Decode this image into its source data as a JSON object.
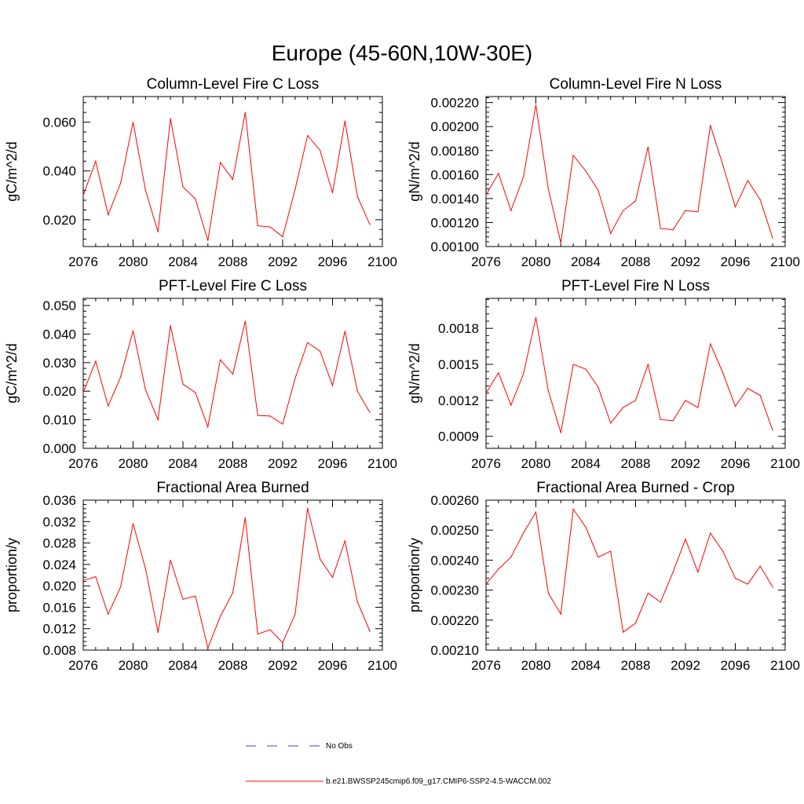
{
  "figure_title": "Europe (45-60N,10W-30E)",
  "legend": {
    "obs_label": "No Obs",
    "obs_color": "#4040c0",
    "model_label": "b.e21.BWSSP245cmip6.f09_g17.CMIP6-SSP2-4.5-WACCM.002",
    "model_color": "#ff0000"
  },
  "chart_data": [
    {
      "type": "line",
      "title": "Column-Level Fire C Loss",
      "xlabel": "",
      "ylabel": "gC/m^2/d",
      "xlim": [
        2076,
        2100
      ],
      "xticks": [
        2076,
        2080,
        2084,
        2088,
        2092,
        2096,
        2100
      ],
      "ylim": [
        0.009,
        0.0705
      ],
      "yticks": [
        0.02,
        0.04,
        0.06
      ],
      "ytick_labels": [
        "0.020",
        "0.040",
        "0.060"
      ],
      "grid": false,
      "series": [
        {
          "name": "b.e21.BWSSP245cmip6.f09_g17.CMIP6-SSP2-4.5-WACCM.002",
          "color": "#ff0000",
          "x": [
            2076,
            2077,
            2078,
            2079,
            2080,
            2081,
            2082,
            2083,
            2084,
            2085,
            2086,
            2087,
            2088,
            2089,
            2090,
            2091,
            2092,
            2093,
            2094,
            2095,
            2096,
            2097,
            2098,
            2099
          ],
          "values": [
            0.03,
            0.044,
            0.022,
            0.035,
            0.06,
            0.032,
            0.015,
            0.0615,
            0.0335,
            0.0285,
            0.0115,
            0.0435,
            0.0365,
            0.064,
            0.0175,
            0.017,
            0.013,
            0.0325,
            0.0545,
            0.0485,
            0.031,
            0.0605,
            0.0295,
            0.018
          ]
        }
      ]
    },
    {
      "type": "line",
      "title": "Column-Level Fire N Loss",
      "xlabel": "",
      "ylabel": "gN/m^2/d",
      "xlim": [
        2076,
        2100
      ],
      "xticks": [
        2076,
        2080,
        2084,
        2088,
        2092,
        2096,
        2100
      ],
      "ylim": [
        0.001,
        0.00225
      ],
      "yticks": [
        0.001,
        0.0012,
        0.0014,
        0.0016,
        0.0018,
        0.002,
        0.0022
      ],
      "ytick_labels": [
        "0.00100",
        "0.00120",
        "0.00140",
        "0.00160",
        "0.00180",
        "0.00200",
        "0.00220"
      ],
      "grid": false,
      "series": [
        {
          "name": "b.e21.BWSSP245cmip6.f09_g17.CMIP6-SSP2-4.5-WACCM.002",
          "color": "#ff0000",
          "x": [
            2076,
            2077,
            2078,
            2079,
            2080,
            2081,
            2082,
            2083,
            2084,
            2085,
            2086,
            2087,
            2088,
            2089,
            2090,
            2091,
            2092,
            2093,
            2094,
            2095,
            2096,
            2097,
            2098,
            2099
          ],
          "values": [
            0.00143,
            0.00161,
            0.0013,
            0.00158,
            0.00218,
            0.00148,
            0.00103,
            0.00176,
            0.00163,
            0.00147,
            0.00111,
            0.0013,
            0.00138,
            0.00183,
            0.00115,
            0.00114,
            0.0013,
            0.00129,
            0.00201,
            0.00168,
            0.00133,
            0.00155,
            0.00139,
            0.00107
          ]
        }
      ]
    },
    {
      "type": "line",
      "title": "PFT-Level Fire C Loss",
      "xlabel": "",
      "ylabel": "gC/m^2/d",
      "xlim": [
        2076,
        2100
      ],
      "xticks": [
        2076,
        2080,
        2084,
        2088,
        2092,
        2096,
        2100
      ],
      "ylim": [
        0.0,
        0.0525
      ],
      "yticks": [
        0.0,
        0.01,
        0.02,
        0.03,
        0.04,
        0.05
      ],
      "ytick_labels": [
        "0.000",
        "0.010",
        "0.020",
        "0.030",
        "0.040",
        "0.050"
      ],
      "grid": false,
      "series": [
        {
          "name": "b.e21.BWSSP245cmip6.f09_g17.CMIP6-SSP2-4.5-WACCM.002",
          "color": "#ff0000",
          "x": [
            2076,
            2077,
            2078,
            2079,
            2080,
            2081,
            2082,
            2083,
            2084,
            2085,
            2086,
            2087,
            2088,
            2089,
            2090,
            2091,
            2092,
            2093,
            2094,
            2095,
            2096,
            2097,
            2098,
            2099
          ],
          "values": [
            0.0195,
            0.0305,
            0.0148,
            0.025,
            0.0412,
            0.0205,
            0.01,
            0.043,
            0.0225,
            0.0195,
            0.0075,
            0.031,
            0.026,
            0.0445,
            0.0115,
            0.0113,
            0.0085,
            0.0245,
            0.037,
            0.034,
            0.022,
            0.041,
            0.02,
            0.0125
          ]
        }
      ]
    },
    {
      "type": "line",
      "title": "PFT-Level Fire N Loss",
      "xlabel": "",
      "ylabel": "gN/m^2/d",
      "xlim": [
        2076,
        2100
      ],
      "xticks": [
        2076,
        2080,
        2084,
        2088,
        2092,
        2096,
        2100
      ],
      "ylim": [
        0.0008,
        0.00205
      ],
      "yticks": [
        0.0009,
        0.0012,
        0.0015,
        0.0018
      ],
      "ytick_labels": [
        "0.0009",
        "0.0012",
        "0.0015",
        "0.0018"
      ],
      "grid": false,
      "series": [
        {
          "name": "b.e21.BWSSP245cmip6.f09_g17.CMIP6-SSP2-4.5-WACCM.002",
          "color": "#ff0000",
          "x": [
            2076,
            2077,
            2078,
            2079,
            2080,
            2081,
            2082,
            2083,
            2084,
            2085,
            2086,
            2087,
            2088,
            2089,
            2090,
            2091,
            2092,
            2093,
            2094,
            2095,
            2096,
            2097,
            2098,
            2099
          ],
          "values": [
            0.00126,
            0.00143,
            0.00116,
            0.00142,
            0.00189,
            0.00128,
            0.00093,
            0.0015,
            0.00146,
            0.00131,
            0.00101,
            0.00114,
            0.0012,
            0.0015,
            0.00104,
            0.00103,
            0.0012,
            0.00114,
            0.00167,
            0.00143,
            0.00115,
            0.0013,
            0.00124,
            0.00095
          ]
        }
      ]
    },
    {
      "type": "line",
      "title": "Fractional Area Burned",
      "xlabel": "",
      "ylabel": "proportion/y",
      "xlim": [
        2076,
        2100
      ],
      "xticks": [
        2076,
        2080,
        2084,
        2088,
        2092,
        2096,
        2100
      ],
      "ylim": [
        0.008,
        0.036
      ],
      "yticks": [
        0.008,
        0.012,
        0.016,
        0.02,
        0.024,
        0.028,
        0.032,
        0.036
      ],
      "ytick_labels": [
        "0.008",
        "0.012",
        "0.016",
        "0.020",
        "0.024",
        "0.028",
        "0.032",
        "0.036"
      ],
      "grid": false,
      "series": [
        {
          "name": "b.e21.BWSSP245cmip6.f09_g17.CMIP6-SSP2-4.5-WACCM.002",
          "color": "#ff0000",
          "x": [
            2076,
            2077,
            2078,
            2079,
            2080,
            2081,
            2082,
            2083,
            2084,
            2085,
            2086,
            2087,
            2088,
            2089,
            2090,
            2091,
            2092,
            2093,
            2094,
            2095,
            2096,
            2097,
            2098,
            2099
          ],
          "values": [
            0.021,
            0.0217,
            0.0147,
            0.0198,
            0.0316,
            0.0232,
            0.0113,
            0.0248,
            0.0175,
            0.0181,
            0.0084,
            0.0143,
            0.0187,
            0.0327,
            0.011,
            0.0118,
            0.0094,
            0.0147,
            0.0345,
            0.025,
            0.0216,
            0.0284,
            0.017,
            0.0115
          ]
        }
      ]
    },
    {
      "type": "line",
      "title": "Fractional Area Burned - Crop",
      "xlabel": "",
      "ylabel": "proportion/y",
      "xlim": [
        2076,
        2100
      ],
      "xticks": [
        2076,
        2080,
        2084,
        2088,
        2092,
        2096,
        2100
      ],
      "ylim": [
        0.0021,
        0.0026
      ],
      "yticks": [
        0.0021,
        0.0022,
        0.0023,
        0.0024,
        0.0025,
        0.0026
      ],
      "ytick_labels": [
        "0.00210",
        "0.00220",
        "0.00230",
        "0.00240",
        "0.00250",
        "0.00260"
      ],
      "grid": false,
      "series": [
        {
          "name": "b.e21.BWSSP245cmip6.f09_g17.CMIP6-SSP2-4.5-WACCM.002",
          "color": "#ff0000",
          "x": [
            2076,
            2077,
            2078,
            2079,
            2080,
            2081,
            2082,
            2083,
            2084,
            2085,
            2086,
            2087,
            2088,
            2089,
            2090,
            2091,
            2092,
            2093,
            2094,
            2095,
            2096,
            2097,
            2098,
            2099
          ],
          "values": [
            0.00232,
            0.00237,
            0.00241,
            0.00249,
            0.00256,
            0.00229,
            0.00222,
            0.00257,
            0.00251,
            0.00241,
            0.00243,
            0.00216,
            0.00219,
            0.00229,
            0.00226,
            0.00236,
            0.00247,
            0.00236,
            0.00249,
            0.00243,
            0.00234,
            0.00232,
            0.00238,
            0.00231
          ]
        }
      ]
    }
  ]
}
